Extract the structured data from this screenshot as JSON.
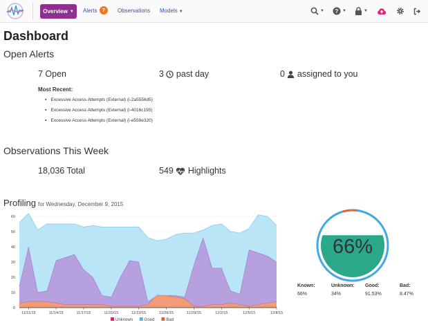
{
  "nav": {
    "overview": "Overview",
    "alerts": "Alerts",
    "alerts_badge": "7",
    "observations": "Observations",
    "models": "Models",
    "icons": [
      "search-icon",
      "help-icon",
      "lock-icon",
      "cloud-upload-icon",
      "gear-icon",
      "logout-icon"
    ],
    "accent": "#8e3090"
  },
  "dashboard": {
    "title": "Dashboard",
    "open_alerts": {
      "heading": "Open Alerts",
      "open": "7 Open",
      "past_day_count": "3",
      "past_day_label": "past day",
      "assigned_count": "0",
      "assigned_label": "assigned to you",
      "most_recent_label": "Most Recent:",
      "recent": [
        "Excessive Access Attempts (External) (i-2a5556d5)",
        "Excessive Access Attempts (External) (i-4016c195)",
        "Excessive Access Attempts (External) (i-e559e320)"
      ]
    },
    "observations": {
      "heading": "Observations This Week",
      "total": "18,036 Total",
      "highlights_count": "549",
      "highlights_label": "Highlights"
    },
    "profiling": {
      "title": "Profiling",
      "subtitle": "for Wednesday, December 9, 2015"
    }
  },
  "chart_data": {
    "type": "area",
    "stacked": true,
    "x": [
      "11/10/15",
      "11/11/15",
      "11/12/15",
      "11/13/15",
      "11/14/15",
      "11/15/15",
      "11/16/15",
      "11/17/15",
      "11/18/15",
      "11/19/15",
      "11/20/15",
      "11/21/15",
      "11/22/15",
      "11/23/15",
      "11/24/15",
      "11/25/15",
      "11/26/15",
      "11/27/15",
      "11/28/15",
      "11/29/15",
      "11/30/15",
      "12/1/15",
      "12/2/15",
      "12/3/15",
      "12/4/15",
      "12/5/15",
      "12/6/15",
      "12/7/15",
      "12/8/15"
    ],
    "xticks": [
      "11/11/15",
      "11/14/15",
      "11/17/15",
      "11/20/15",
      "11/23/15",
      "11/26/15",
      "11/29/15",
      "12/2/15",
      "12/5/15",
      "12/8/15"
    ],
    "ylim": [
      0,
      60
    ],
    "yticks": [
      0,
      10,
      20,
      30,
      40,
      50,
      60
    ],
    "series": [
      {
        "name": "Bad",
        "color": "#f08a5c",
        "values": [
          3,
          4,
          4,
          4,
          3,
          2,
          2,
          2,
          2,
          2,
          1,
          1,
          1,
          1,
          2,
          9,
          8,
          7,
          6,
          1,
          1,
          2,
          2,
          3,
          2,
          1,
          2,
          3,
          4
        ]
      },
      {
        "name": "Good",
        "color": "#a98fd8",
        "values": [
          11,
          36,
          6,
          7,
          28,
          31,
          33,
          23,
          18,
          6,
          6,
          19,
          30,
          29,
          2,
          -1,
          0,
          1,
          1,
          27,
          45,
          24,
          24,
          8,
          7,
          37,
          34,
          31,
          26
        ]
      },
      {
        "name": "Unknown",
        "color": "#aee0f4",
        "values": [
          42,
          22,
          41,
          44,
          24,
          22,
          20,
          28,
          34,
          45,
          46,
          33,
          22,
          23,
          42,
          36,
          37,
          40,
          42,
          21,
          5,
          28,
          29,
          39,
          40,
          14,
          25,
          26,
          24
        ]
      }
    ],
    "legend": [
      "Unknown",
      "Good",
      "Bad"
    ],
    "legend_colors": [
      "#d6246e",
      "#5ab4d9",
      "#e8662c"
    ]
  },
  "gauge": {
    "value_label": "66%",
    "fill_fraction": 0.66,
    "ring_color": "#3fa9e0",
    "accent_color": "#e8662c",
    "fill_color": "#2ba88a",
    "stats": [
      {
        "key": "Known:",
        "value": "66%"
      },
      {
        "key": "Unknown:",
        "value": "34%"
      },
      {
        "key": "Good:",
        "value": "91.53%"
      },
      {
        "key": "Bad:",
        "value": "8.47%"
      }
    ]
  }
}
